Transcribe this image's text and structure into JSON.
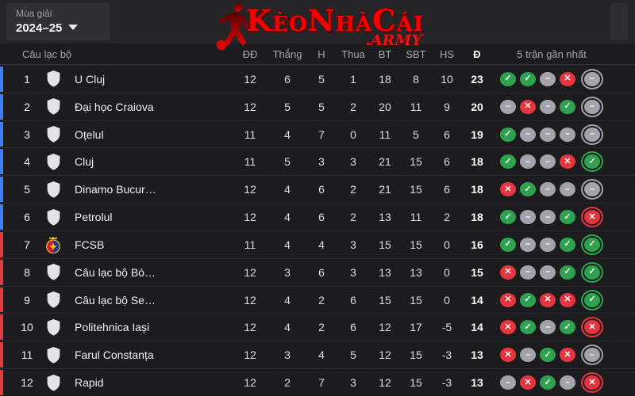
{
  "season_selector": {
    "label": "Mùa giải",
    "value": "2024–25"
  },
  "logo": {
    "title": "KèoNhàCái",
    "suffix": ".ARMY",
    "color": "#f70000"
  },
  "accent_colors": {
    "blue": "#3d7ef5",
    "red": "#e13b41"
  },
  "form_colors": {
    "win": "#2fa24f",
    "draw": "#a2a3ab",
    "loss": "#e6353e"
  },
  "form_glyphs": {
    "win": "✓",
    "draw": "–",
    "loss": "✕"
  },
  "table": {
    "headers": {
      "club": "Câu lạc bộ",
      "played": "ĐĐ",
      "wins": "Thắng",
      "draws": "H",
      "losses": "Thua",
      "gf": "BT",
      "ga": "SBT",
      "gd": "HS",
      "points": "Đ",
      "form": "5 trận gần nhất"
    },
    "rows": [
      {
        "pos": 1,
        "team": "U Cluj",
        "crest": "shield",
        "accent": "blue",
        "played": 12,
        "wins": 6,
        "draws": 5,
        "losses": 1,
        "gf": 18,
        "ga": 8,
        "gd": 10,
        "points": 23,
        "form": [
          "win",
          "win",
          "draw",
          "loss",
          "draw"
        ]
      },
      {
        "pos": 2,
        "team": "Đại học Craiova",
        "crest": "shield",
        "accent": "blue",
        "played": 12,
        "wins": 5,
        "draws": 5,
        "losses": 2,
        "gf": 20,
        "ga": 11,
        "gd": 9,
        "points": 20,
        "form": [
          "draw",
          "loss",
          "draw",
          "win",
          "draw"
        ]
      },
      {
        "pos": 3,
        "team": "Oțelul",
        "crest": "shield",
        "accent": "blue",
        "played": 11,
        "wins": 4,
        "draws": 7,
        "losses": 0,
        "gf": 11,
        "ga": 5,
        "gd": 6,
        "points": 19,
        "form": [
          "win",
          "draw",
          "draw",
          "draw",
          "draw"
        ]
      },
      {
        "pos": 4,
        "team": "Cluj",
        "crest": "shield",
        "accent": "blue",
        "played": 11,
        "wins": 5,
        "draws": 3,
        "losses": 3,
        "gf": 21,
        "ga": 15,
        "gd": 6,
        "points": 18,
        "form": [
          "win",
          "draw",
          "draw",
          "loss",
          "win"
        ]
      },
      {
        "pos": 5,
        "team": "Dinamo Bucur…",
        "crest": "shield",
        "accent": "blue",
        "played": 12,
        "wins": 4,
        "draws": 6,
        "losses": 2,
        "gf": 21,
        "ga": 15,
        "gd": 6,
        "points": 18,
        "form": [
          "loss",
          "win",
          "draw",
          "draw",
          "draw"
        ]
      },
      {
        "pos": 6,
        "team": "Petrolul",
        "crest": "shield",
        "accent": "blue",
        "played": 12,
        "wins": 4,
        "draws": 6,
        "losses": 2,
        "gf": 13,
        "ga": 11,
        "gd": 2,
        "points": 18,
        "form": [
          "win",
          "draw",
          "draw",
          "win",
          "loss"
        ]
      },
      {
        "pos": 7,
        "team": "FCSB",
        "crest": "fcsb",
        "accent": "red",
        "played": 11,
        "wins": 4,
        "draws": 4,
        "losses": 3,
        "gf": 15,
        "ga": 15,
        "gd": 0,
        "points": 16,
        "form": [
          "win",
          "draw",
          "draw",
          "win",
          "win"
        ]
      },
      {
        "pos": 8,
        "team": "Câu lạc bộ Bó…",
        "crest": "shield",
        "accent": "red",
        "played": 12,
        "wins": 3,
        "draws": 6,
        "losses": 3,
        "gf": 13,
        "ga": 13,
        "gd": 0,
        "points": 15,
        "form": [
          "loss",
          "draw",
          "draw",
          "win",
          "win"
        ]
      },
      {
        "pos": 9,
        "team": "Câu lạc bộ Se…",
        "crest": "shield",
        "accent": "red",
        "played": 12,
        "wins": 4,
        "draws": 2,
        "losses": 6,
        "gf": 15,
        "ga": 15,
        "gd": 0,
        "points": 14,
        "form": [
          "loss",
          "win",
          "loss",
          "loss",
          "win"
        ]
      },
      {
        "pos": 10,
        "team": "Politehnica Iași",
        "crest": "shield",
        "accent": "red",
        "played": 12,
        "wins": 4,
        "draws": 2,
        "losses": 6,
        "gf": 12,
        "ga": 17,
        "gd": -5,
        "points": 14,
        "form": [
          "loss",
          "win",
          "draw",
          "win",
          "loss"
        ]
      },
      {
        "pos": 11,
        "team": "Farul Constanța",
        "crest": "shield",
        "accent": "red",
        "played": 12,
        "wins": 3,
        "draws": 4,
        "losses": 5,
        "gf": 12,
        "ga": 15,
        "gd": -3,
        "points": 13,
        "form": [
          "loss",
          "draw",
          "win",
          "loss",
          "draw"
        ]
      },
      {
        "pos": 12,
        "team": "Rapid",
        "crest": "shield",
        "accent": "red",
        "played": 12,
        "wins": 2,
        "draws": 7,
        "losses": 3,
        "gf": 12,
        "ga": 15,
        "gd": -3,
        "points": 13,
        "form": [
          "draw",
          "loss",
          "win",
          "draw",
          "loss"
        ]
      }
    ]
  }
}
